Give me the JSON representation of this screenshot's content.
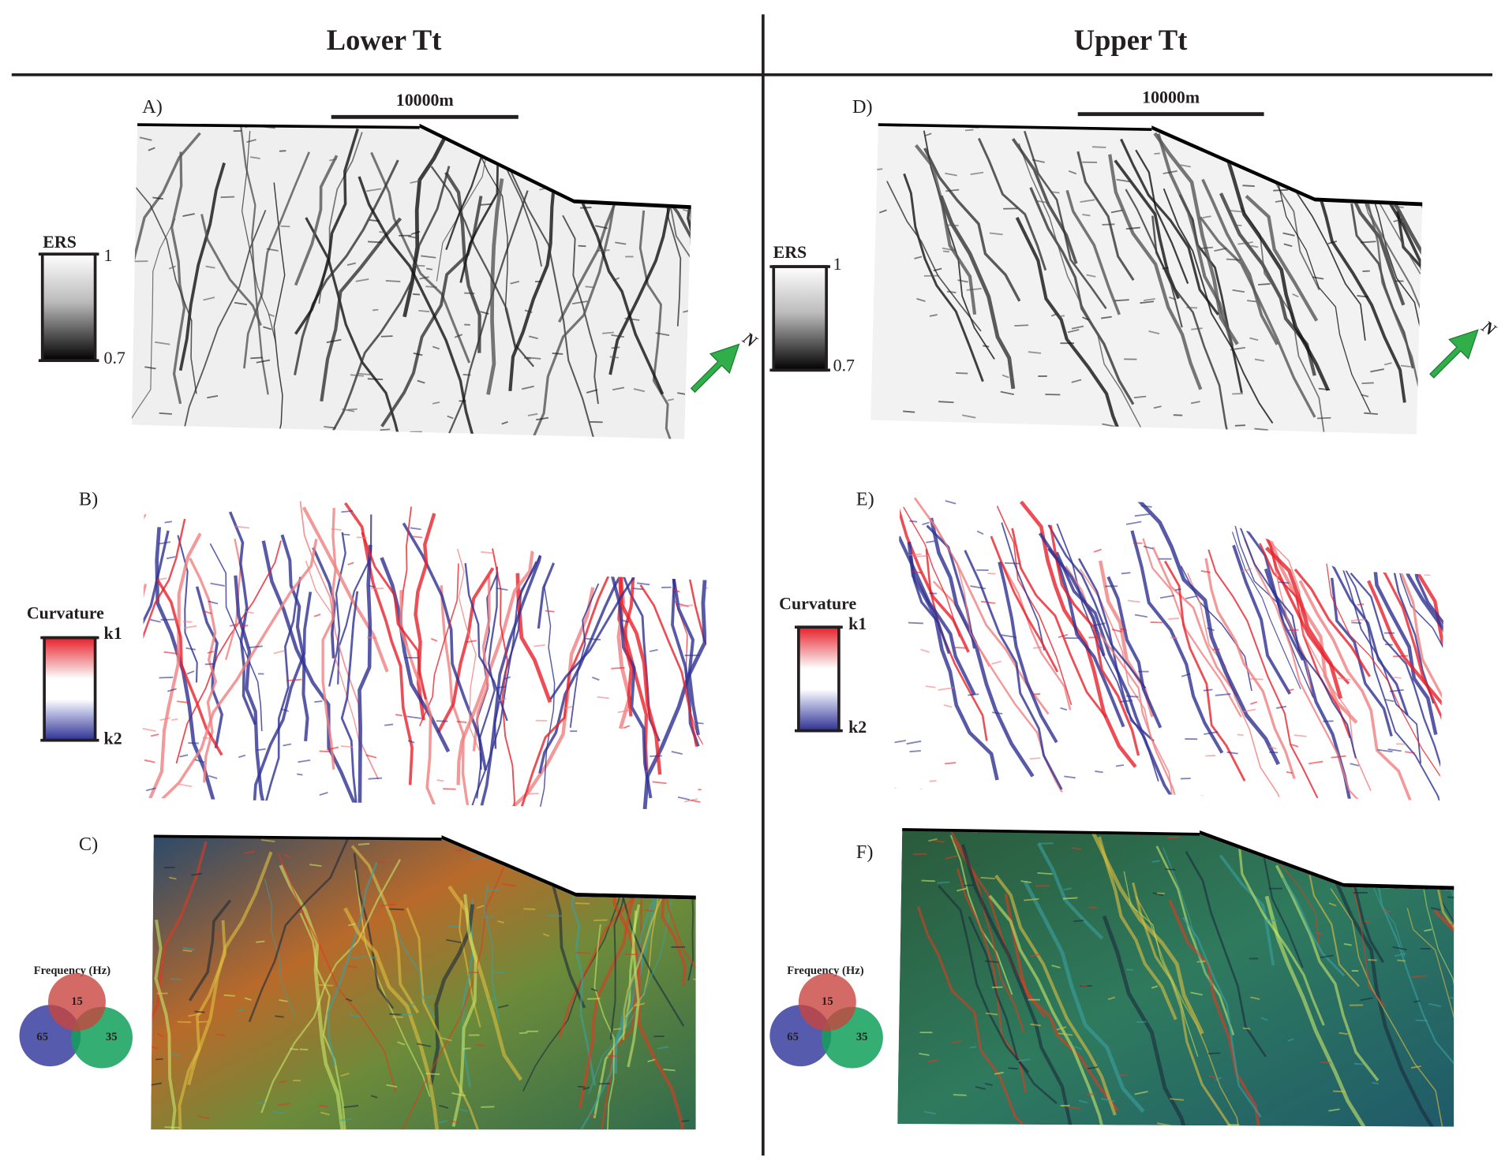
{
  "columns": [
    {
      "title": "Lower Tt",
      "scale_bar": "10000m",
      "north": "N",
      "panels": [
        {
          "label": "A)",
          "legend": {
            "title": "ERS",
            "max": 1,
            "min": 0.7
          }
        },
        {
          "label": "B)",
          "legend": {
            "title": "Curvature",
            "max": "k1",
            "min": "k2"
          }
        },
        {
          "label": "C)",
          "legend": {
            "title": "Frequency (Hz)",
            "red": 15,
            "green": 35,
            "blue": 65
          }
        }
      ]
    },
    {
      "title": "Upper Tt",
      "scale_bar": "10000m",
      "north": "N",
      "panels": [
        {
          "label": "D)",
          "legend": {
            "title": "ERS",
            "max": 1,
            "min": 0.7
          }
        },
        {
          "label": "E)",
          "legend": {
            "title": "Curvature",
            "max": "k1",
            "min": "k2"
          }
        },
        {
          "label": "F)",
          "legend": {
            "title": "Frequency (Hz)",
            "red": 15,
            "green": 35,
            "blue": 65
          }
        }
      ]
    }
  ]
}
